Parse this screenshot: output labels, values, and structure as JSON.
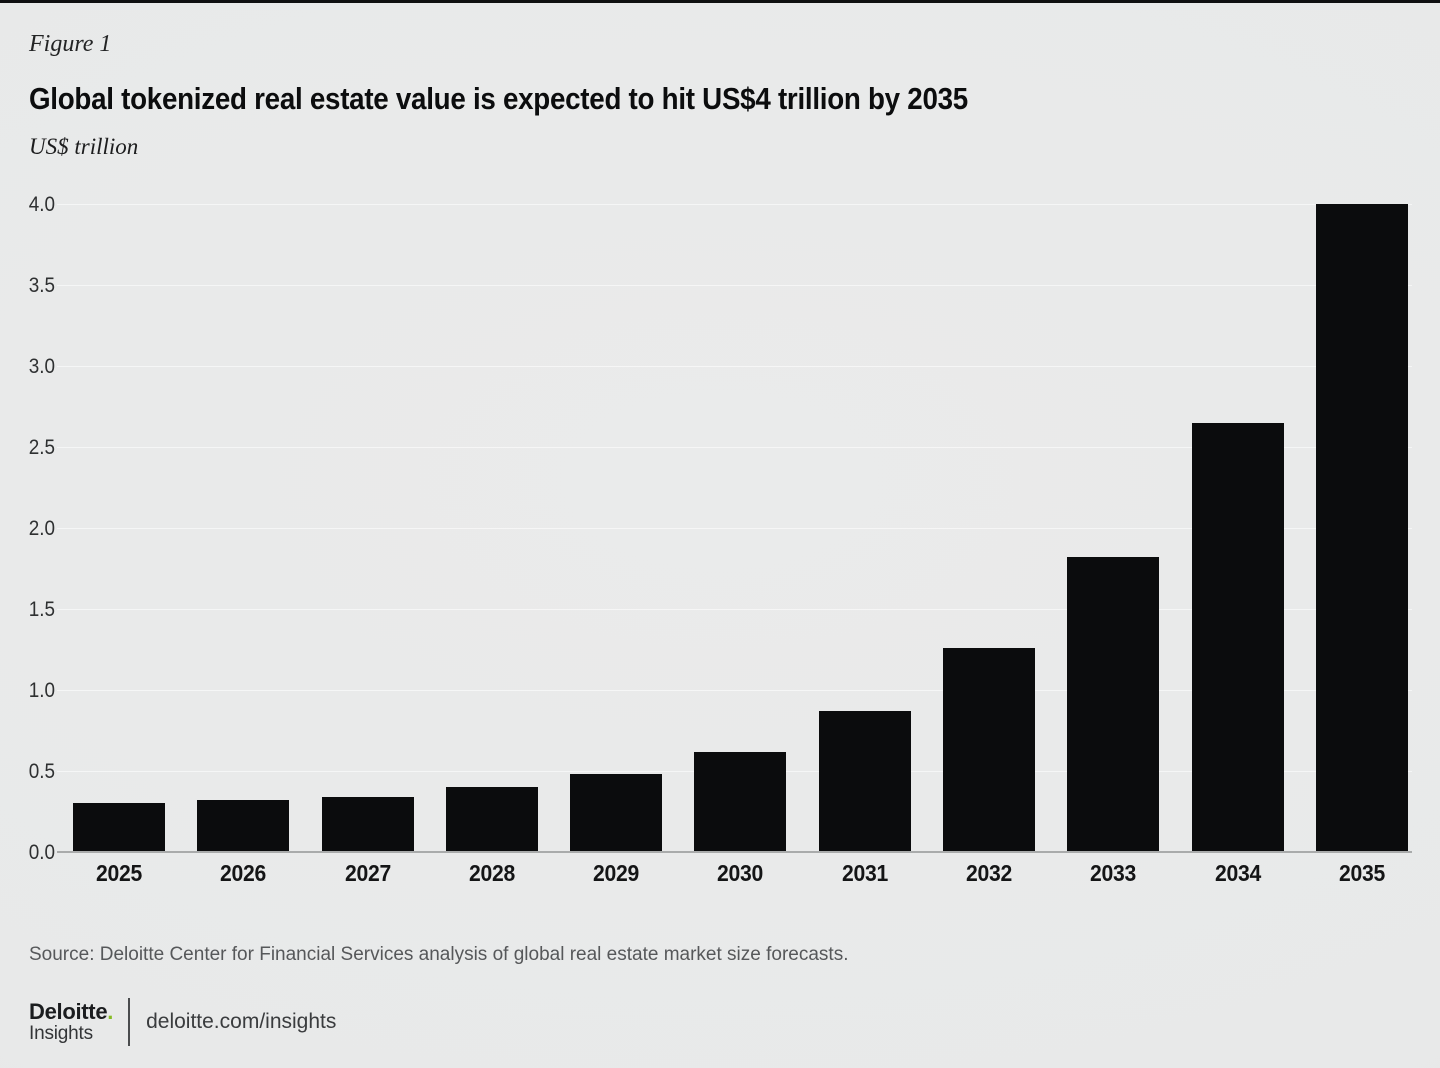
{
  "figure_label": "Figure 1",
  "title": "Global tokenized real estate value is expected to hit US$4 trillion by 2035",
  "unit_label": "US$ trillion",
  "source": "Source: Deloitte Center for Financial Services analysis of global real estate market size forecasts.",
  "footer": {
    "brand": "Deloitte",
    "brand_dot": ".",
    "brand_sub": "Insights",
    "link": "deloitte.com/insights"
  },
  "colors": {
    "background": "#e9eaea",
    "bar": "#0b0c0d",
    "axis_line": "#a9abab",
    "deloitte_green": "#86bc25",
    "text_dark": "#0c0d0e",
    "text_gray": "#56585a"
  },
  "chart_data": {
    "type": "bar",
    "title": "Global tokenized real estate value is expected to hit US$4 trillion by 2035",
    "categories": [
      "2025",
      "2026",
      "2027",
      "2028",
      "2029",
      "2030",
      "2031",
      "2032",
      "2033",
      "2034",
      "2035"
    ],
    "values": [
      0.3,
      0.32,
      0.34,
      0.4,
      0.48,
      0.62,
      0.87,
      1.26,
      1.82,
      2.65,
      4.0
    ],
    "xlabel": "",
    "ylabel": "US$ trillion",
    "ylim": [
      0,
      4.0
    ],
    "ytick_step": 0.5,
    "ytick_format_decimals": 1,
    "grid": "subtle-horizontal",
    "legend": "none",
    "bar_color": "#0b0c0d"
  }
}
